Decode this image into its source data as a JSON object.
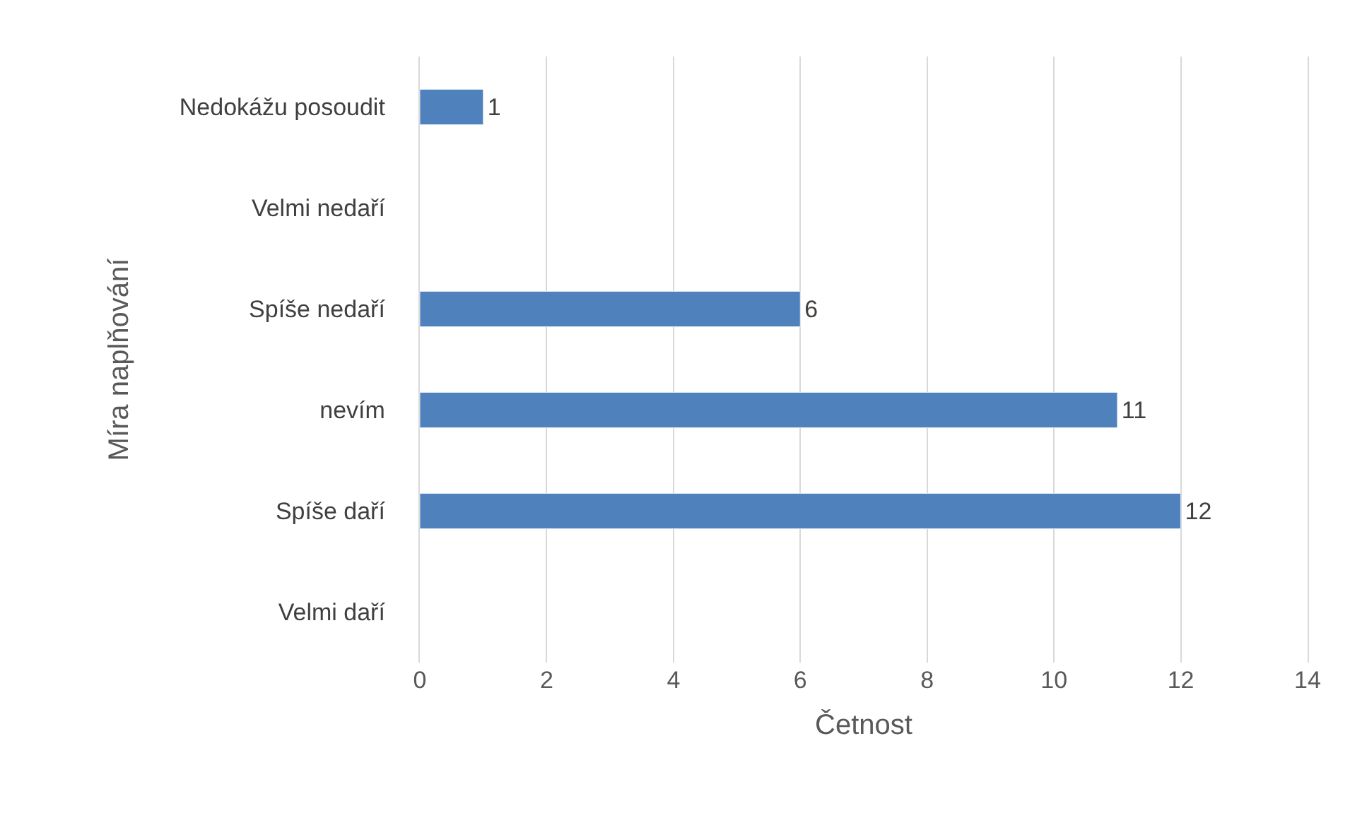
{
  "chart_data": {
    "type": "bar",
    "orientation": "horizontal",
    "xlabel": "Četnost",
    "ylabel": "Míra naplňování",
    "categories": [
      "Nedokážu posoudit",
      "Velmi nedaří",
      "Spíše nedaří",
      "nevím",
      "Spíše daří",
      "Velmi daří"
    ],
    "values": [
      1,
      null,
      6,
      11,
      12,
      null
    ],
    "color": "#4f81bd",
    "xlim": [
      0,
      14
    ],
    "xticks": [
      0,
      2,
      4,
      6,
      8,
      10,
      12,
      14
    ],
    "grid": "x",
    "data_labels": true
  }
}
